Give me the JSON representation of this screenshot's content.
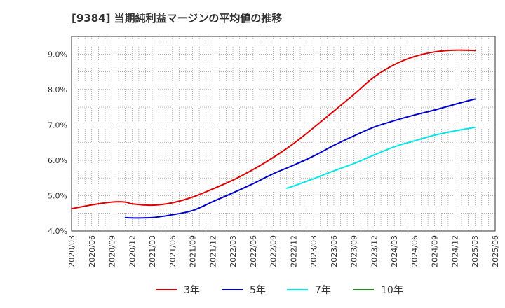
{
  "chart_data": {
    "type": "line",
    "title": "[9384]  当期純利益マージンの平均値の推移",
    "xlabel": "",
    "ylabel": "",
    "ylim": [
      4.0,
      9.5
    ],
    "yticks": [
      "4.0%",
      "5.0%",
      "6.0%",
      "7.0%",
      "8.0%",
      "9.0%"
    ],
    "ytick_values": [
      4.0,
      5.0,
      6.0,
      7.0,
      8.0,
      9.0
    ],
    "xticks": [
      "2020/03",
      "2020/06",
      "2020/09",
      "2020/12",
      "2021/03",
      "2021/06",
      "2021/09",
      "2021/12",
      "2022/03",
      "2022/06",
      "2022/09",
      "2022/12",
      "2023/03",
      "2023/06",
      "2023/09",
      "2023/12",
      "2024/03",
      "2024/06",
      "2024/09",
      "2024/12",
      "2025/03",
      "2025/06"
    ],
    "grid": true,
    "legend_position": "bottom",
    "series": [
      {
        "name": "3年",
        "color": "#dd0000",
        "values": [
          [
            "2020/03",
            4.63
          ],
          [
            "2020/06",
            4.74
          ],
          [
            "2020/09",
            4.82
          ],
          [
            "2020/11",
            4.82
          ],
          [
            "2020/12",
            4.77
          ],
          [
            "2021/03",
            4.73
          ],
          [
            "2021/06",
            4.8
          ],
          [
            "2021/09",
            4.96
          ],
          [
            "2021/12",
            5.19
          ],
          [
            "2022/03",
            5.44
          ],
          [
            "2022/06",
            5.74
          ],
          [
            "2022/09",
            6.08
          ],
          [
            "2022/12",
            6.47
          ],
          [
            "2023/03",
            6.92
          ],
          [
            "2023/06",
            7.39
          ],
          [
            "2023/09",
            7.86
          ],
          [
            "2023/12",
            8.35
          ],
          [
            "2024/03",
            8.7
          ],
          [
            "2024/06",
            8.93
          ],
          [
            "2024/09",
            9.06
          ],
          [
            "2024/12",
            9.11
          ],
          [
            "2025/03",
            9.1
          ]
        ]
      },
      {
        "name": "5年",
        "color": "#0000cc",
        "values": [
          [
            "2020/11",
            4.38
          ],
          [
            "2020/12",
            4.37
          ],
          [
            "2021/03",
            4.38
          ],
          [
            "2021/06",
            4.46
          ],
          [
            "2021/09",
            4.58
          ],
          [
            "2021/12",
            4.83
          ],
          [
            "2022/03",
            5.08
          ],
          [
            "2022/06",
            5.34
          ],
          [
            "2022/09",
            5.62
          ],
          [
            "2022/12",
            5.86
          ],
          [
            "2023/03",
            6.12
          ],
          [
            "2023/06",
            6.42
          ],
          [
            "2023/09",
            6.69
          ],
          [
            "2023/12",
            6.94
          ],
          [
            "2024/03",
            7.12
          ],
          [
            "2024/06",
            7.28
          ],
          [
            "2024/09",
            7.42
          ],
          [
            "2024/12",
            7.58
          ],
          [
            "2025/03",
            7.73
          ]
        ]
      },
      {
        "name": "7年",
        "color": "#00e5e5",
        "values": [
          [
            "2022/11",
            5.21
          ],
          [
            "2022/12",
            5.27
          ],
          [
            "2023/03",
            5.48
          ],
          [
            "2023/06",
            5.7
          ],
          [
            "2023/09",
            5.91
          ],
          [
            "2023/12",
            6.15
          ],
          [
            "2024/03",
            6.38
          ],
          [
            "2024/06",
            6.55
          ],
          [
            "2024/09",
            6.71
          ],
          [
            "2024/12",
            6.83
          ],
          [
            "2025/03",
            6.93
          ]
        ]
      },
      {
        "name": "10年",
        "color": "#228b22",
        "values": []
      }
    ]
  }
}
